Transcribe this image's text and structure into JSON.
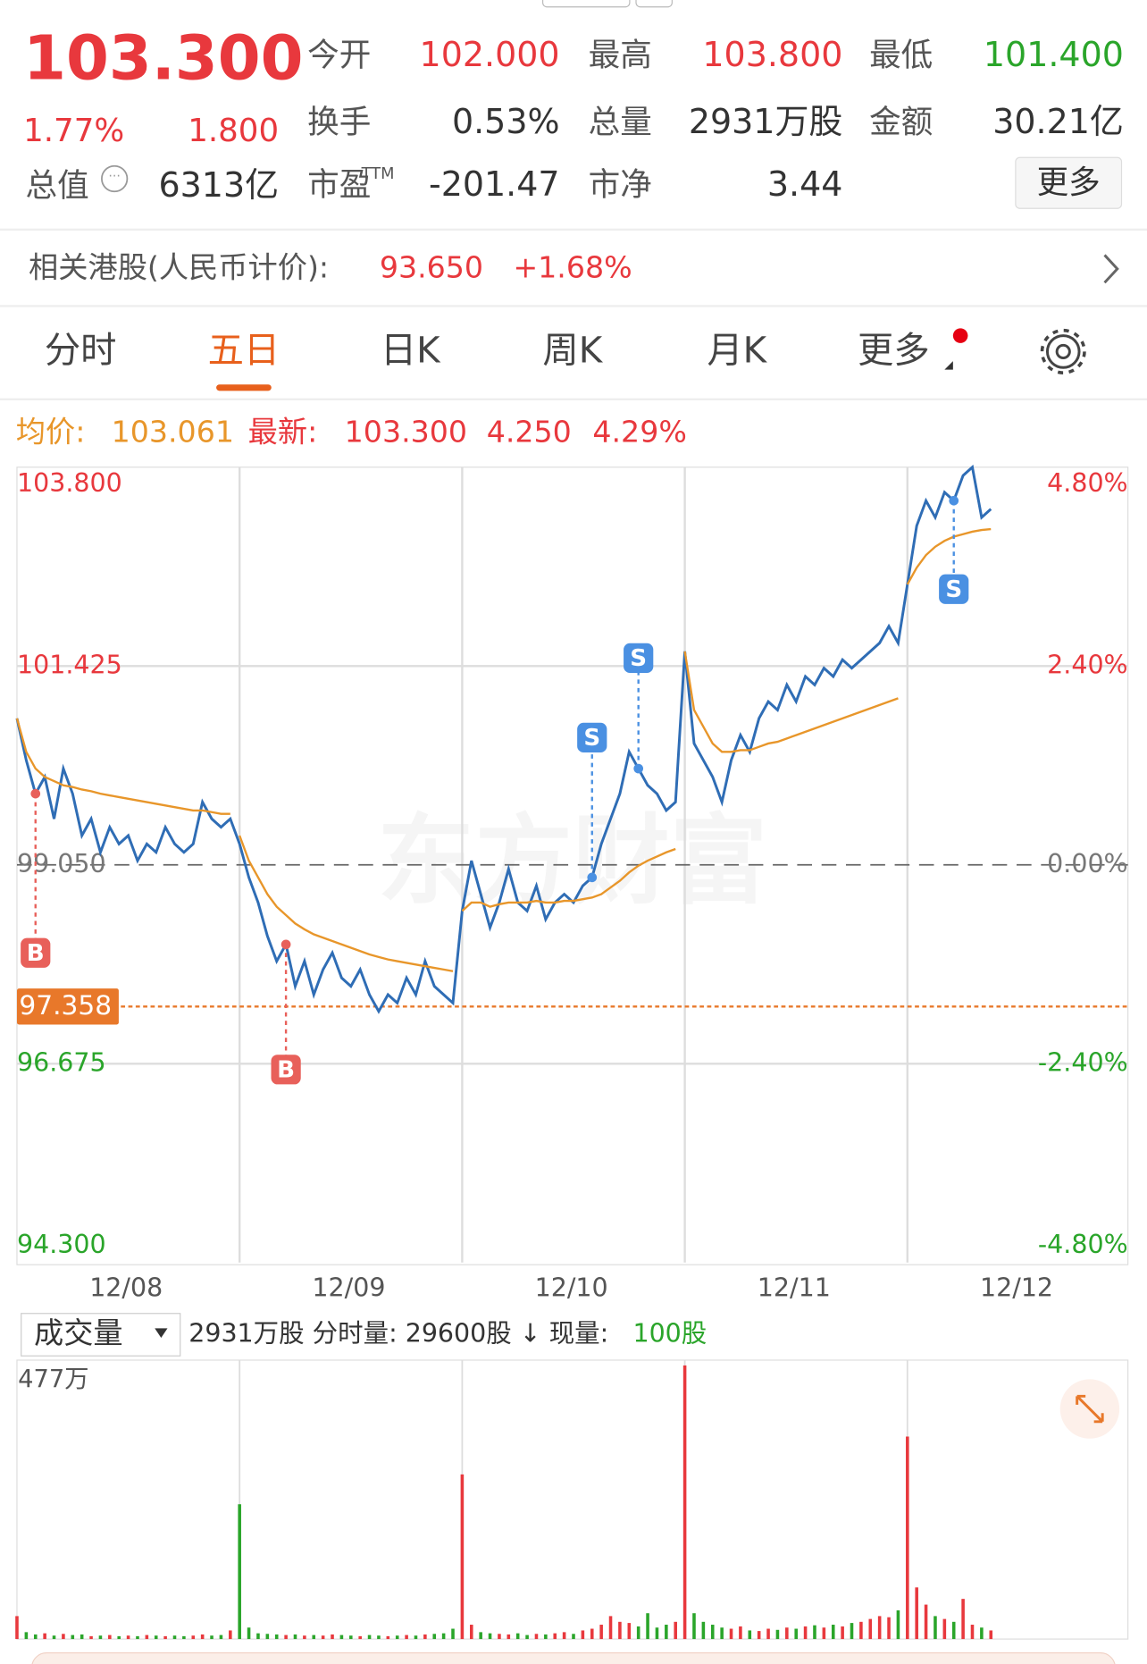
{
  "header": {
    "price": "103.300",
    "change_pct": "1.77%",
    "change": "1.800",
    "market_value_label": "总值",
    "market_value": "6313亿",
    "pe_sup": "TTM",
    "more": "更多",
    "stats": [
      {
        "label": "今开",
        "value": "102.000",
        "color": "#e8383d"
      },
      {
        "label": "最高",
        "value": "103.800",
        "color": "#e8383d"
      },
      {
        "label": "最低",
        "value": "101.400",
        "color": "#2aa52a"
      },
      {
        "label": "换手",
        "value": "0.53%",
        "color": "#333"
      },
      {
        "label": "总量",
        "value": "2931万股",
        "color": "#333"
      },
      {
        "label": "金额",
        "value": "30.21亿",
        "color": "#333"
      },
      {
        "label": "市盈",
        "value": "-201.47",
        "color": "#333"
      },
      {
        "label": "市净",
        "value": "3.44",
        "color": "#333"
      }
    ]
  },
  "hk": {
    "label": "相关港股(人民币计价):",
    "price": "93.650",
    "change": "+1.68%"
  },
  "tabs": [
    "分时",
    "五日",
    "日K",
    "周K",
    "月K",
    "更多"
  ],
  "active_tab": 1,
  "info": {
    "avg_label": "均价:",
    "avg": "103.061",
    "last_label": "最新:",
    "last": "103.300",
    "change": "4.250",
    "change_pct": "4.29%"
  },
  "volume_info": {
    "selector": "成交量",
    "text": "2931万股 分时量: 29600股 ↓ 现量:",
    "current": "100股"
  },
  "chart_data": [
    {
      "type": "line",
      "watermark": "东方财富",
      "grid": true,
      "ylim": [
        94.3,
        103.8
      ],
      "yticks": [
        {
          "value": 103.8,
          "label": "103.800"
        },
        {
          "value": 101.425,
          "label": "101.425"
        },
        {
          "value": 99.05,
          "label": "99.050"
        },
        {
          "value": 96.675,
          "label": "96.675"
        },
        {
          "value": 94.3,
          "label": "94.300"
        }
      ],
      "y2lim": [
        -4.8,
        4.8
      ],
      "y2ticks": [
        {
          "value": 4.8,
          "label": "4.80%"
        },
        {
          "value": 2.4,
          "label": "2.40%"
        },
        {
          "value": 0,
          "label": "0.00%"
        },
        {
          "value": -2.4,
          "label": "-2.40%"
        },
        {
          "value": -4.8,
          "label": "-4.80%"
        }
      ],
      "xticks": [
        "12/08",
        "12/09",
        "12/10",
        "12/11",
        "12/12"
      ],
      "reference_line": 97.358,
      "reference_color": "#e8782a",
      "series": [
        {
          "color": "#2f6db5",
          "values": [
            100.8,
            100.3,
            99.9,
            100.1,
            99.6,
            100.2,
            99.9,
            99.4,
            99.6,
            99.2,
            99.5,
            99.3,
            99.4,
            99.1,
            99.3,
            99.2,
            99.5,
            99.3,
            99.2,
            99.3,
            99.8,
            99.6,
            99.5,
            99.6,
            99.3,
            98.9,
            98.6,
            98.2,
            97.9,
            98.1,
            97.6,
            97.9,
            97.5,
            97.8,
            98.0,
            97.7,
            97.6,
            97.8,
            97.5,
            97.3,
            97.5,
            97.4,
            97.7,
            97.5,
            97.9,
            97.6,
            97.5,
            97.4,
            98.5,
            99.1,
            98.7,
            98.3,
            98.6,
            99.0,
            98.6,
            98.5,
            98.8,
            98.4,
            98.6,
            98.7,
            98.6,
            98.8,
            98.9,
            99.3,
            99.6,
            99.9,
            100.4,
            100.2,
            100.0,
            99.9,
            99.7,
            99.8,
            101.6,
            100.5,
            100.3,
            100.1,
            99.8,
            100.3,
            100.6,
            100.4,
            100.8,
            101.0,
            100.9,
            101.2,
            101.0,
            101.3,
            101.2,
            101.4,
            101.3,
            101.5,
            101.4,
            101.5,
            101.6,
            101.7,
            101.9,
            101.7,
            102.4,
            103.1,
            103.4,
            103.2,
            103.5,
            103.4,
            103.7,
            103.8,
            103.2,
            103.3
          ]
        },
        {
          "color": "#e8962a",
          "values": [
            100.8,
            100.4,
            100.2,
            100.1,
            100.05,
            100.0,
            99.98,
            99.95,
            99.93,
            99.9,
            99.88,
            99.86,
            99.84,
            99.82,
            99.8,
            99.78,
            99.76,
            99.74,
            99.72,
            99.7,
            99.7,
            99.68,
            99.66,
            99.66,
            99.4,
            99.1,
            98.9,
            98.7,
            98.55,
            98.45,
            98.35,
            98.28,
            98.22,
            98.18,
            98.14,
            98.1,
            98.06,
            98.02,
            97.98,
            97.95,
            97.92,
            97.9,
            97.88,
            97.86,
            97.84,
            97.82,
            97.8,
            97.78,
            98.5,
            98.6,
            98.6,
            98.55,
            98.58,
            98.6,
            98.6,
            98.6,
            98.62,
            98.6,
            98.6,
            98.62,
            98.62,
            98.64,
            98.66,
            98.7,
            98.78,
            98.86,
            98.96,
            99.04,
            99.1,
            99.15,
            99.2,
            99.24,
            101.6,
            100.9,
            100.7,
            100.5,
            100.4,
            100.4,
            100.42,
            100.42,
            100.46,
            100.5,
            100.52,
            100.56,
            100.6,
            100.64,
            100.68,
            100.72,
            100.76,
            100.8,
            100.84,
            100.88,
            100.92,
            100.96,
            101.0,
            101.04,
            102.4,
            102.6,
            102.75,
            102.85,
            102.92,
            102.97,
            103.0,
            103.03,
            103.05,
            103.061
          ]
        }
      ],
      "markers": [
        {
          "label": "B"
        },
        {
          "label": "B"
        },
        {
          "label": "S"
        },
        {
          "label": "S"
        },
        {
          "label": "S"
        }
      ]
    },
    {
      "type": "bar",
      "ylim": [
        0,
        477
      ],
      "yticks": [
        {
          "value": 477,
          "label": "477万"
        }
      ],
      "up_color": "#e8383d",
      "down_color": "#2aa52a",
      "values": [
        40,
        12,
        8,
        10,
        6,
        9,
        7,
        8,
        5,
        6,
        7,
        5,
        6,
        5,
        7,
        6,
        5,
        6,
        5,
        6,
        8,
        6,
        7,
        15,
        235,
        20,
        10,
        9,
        8,
        7,
        8,
        6,
        7,
        6,
        8,
        7,
        6,
        5,
        7,
        6,
        5,
        6,
        7,
        6,
        8,
        9,
        10,
        18,
        287,
        25,
        12,
        10,
        9,
        8,
        10,
        7,
        9,
        8,
        10,
        12,
        9,
        15,
        18,
        25,
        40,
        30,
        28,
        22,
        45,
        20,
        25,
        30,
        477,
        45,
        30,
        25,
        20,
        18,
        22,
        15,
        14,
        18,
        16,
        20,
        18,
        22,
        24,
        20,
        25,
        22,
        28,
        30,
        35,
        40,
        38,
        50,
        353,
        90,
        60,
        40,
        35,
        30,
        70,
        25,
        20,
        15
      ]
    }
  ]
}
